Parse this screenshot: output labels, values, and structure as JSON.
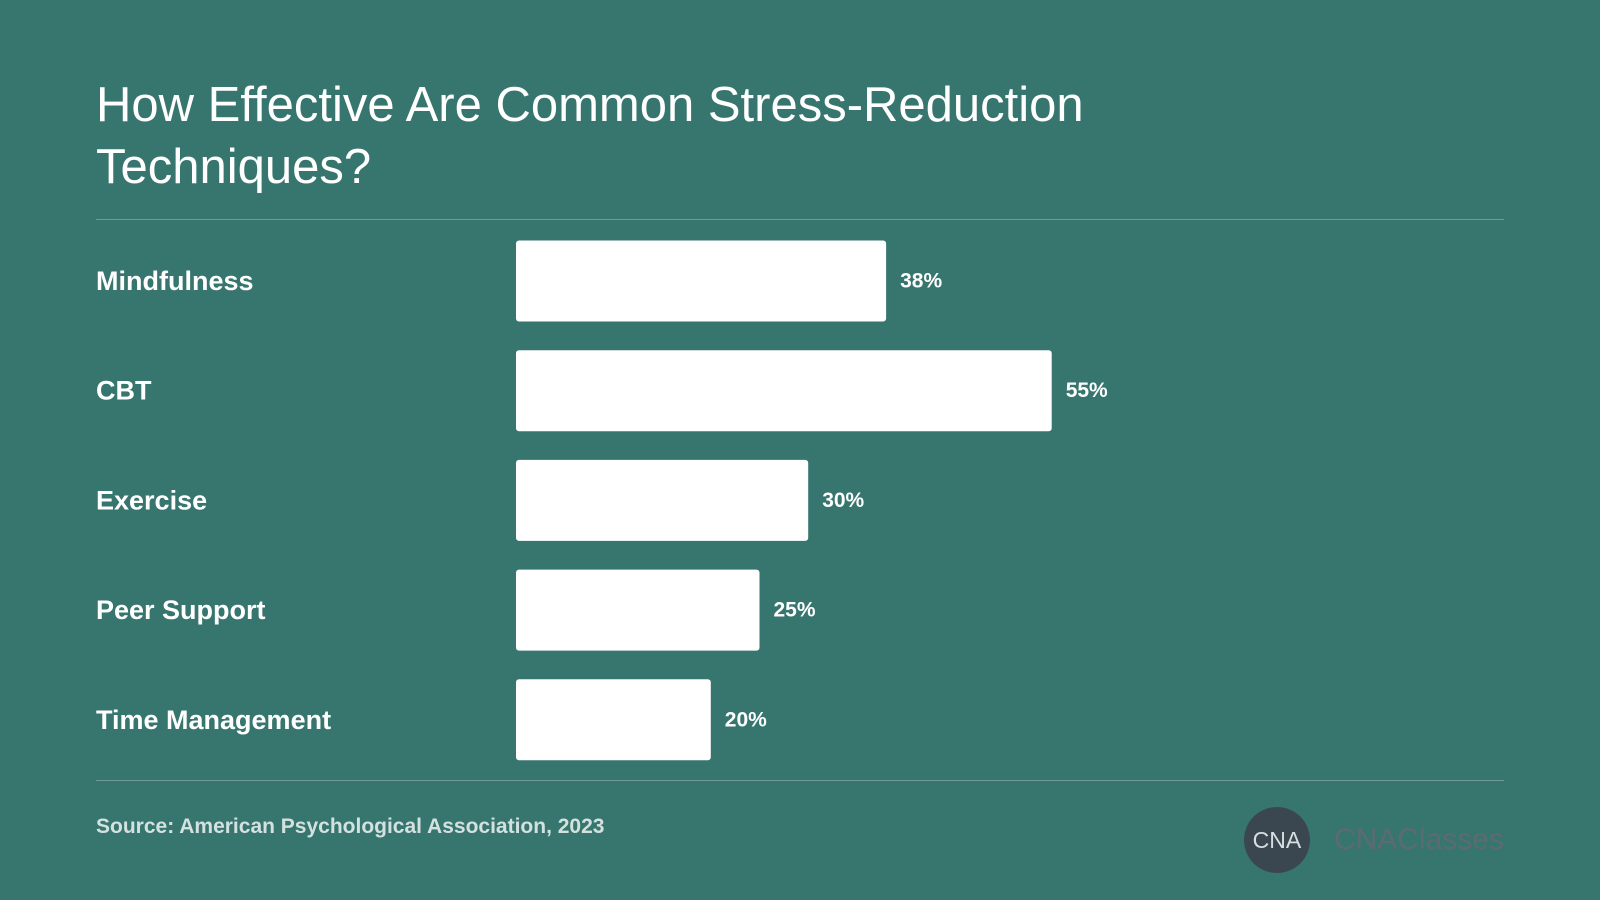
{
  "chart_data": {
    "type": "bar",
    "orientation": "horizontal",
    "title": "How Effective Are Common Stress-Reduction Techniques?",
    "categories": [
      "Mindfulness",
      "CBT",
      "Exercise",
      "Peer Support",
      "Time Management"
    ],
    "values": [
      38,
      55,
      30,
      25,
      20
    ],
    "value_labels": [
      "38%",
      "55%",
      "30%",
      "25%",
      "20%"
    ],
    "unit": "%",
    "xlim": [
      0,
      100
    ],
    "grid": false,
    "legend": "none",
    "colors": {
      "background": "#37756f",
      "bar": "#ffffff",
      "text": "#ffffff"
    }
  },
  "footer": {
    "source": "Source: American Psychological Association, 2023"
  },
  "brand": {
    "logo_text": "CNA",
    "name": "CNAClasses"
  }
}
